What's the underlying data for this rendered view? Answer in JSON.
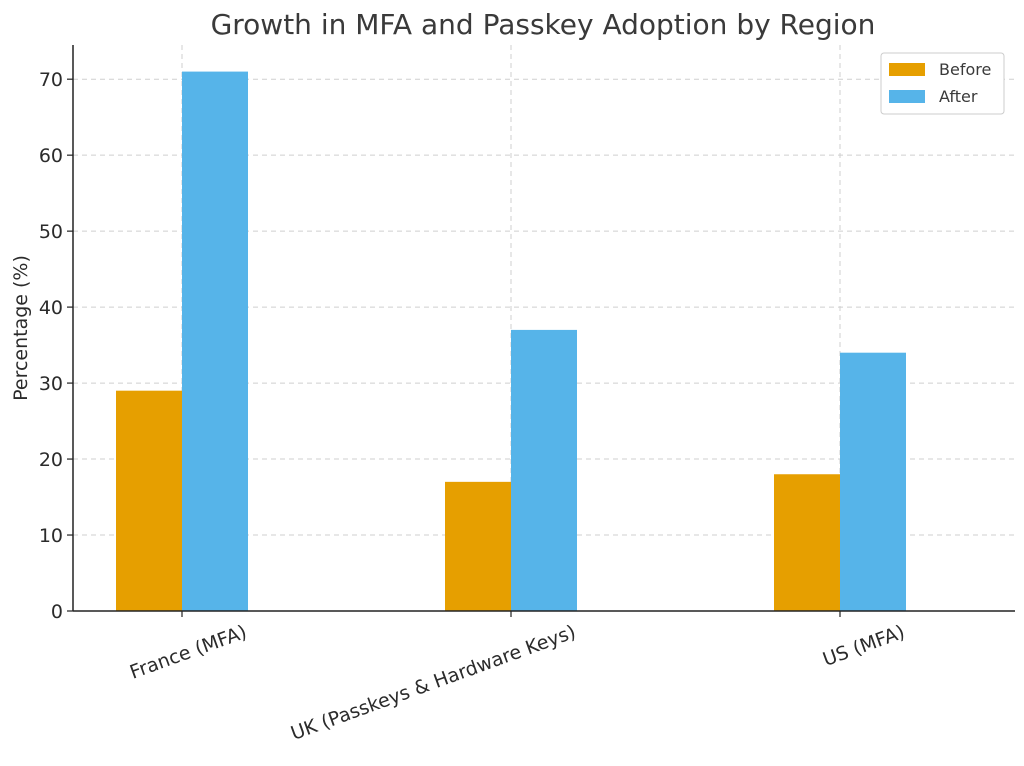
{
  "chart_data": {
    "type": "bar",
    "title": "Growth in MFA and Passkey Adoption by Region",
    "xlabel": "",
    "ylabel": "Percentage (%)",
    "categories": [
      "France (MFA)",
      "UK (Passkeys & Hardware Keys)",
      "US (MFA)"
    ],
    "series": [
      {
        "name": "Before",
        "color": "#E69F00",
        "values": [
          29,
          17,
          18
        ]
      },
      {
        "name": "After",
        "color": "#56B4E9",
        "values": [
          71,
          37,
          34
        ]
      }
    ],
    "ylim": [
      0,
      74.5
    ],
    "yticks": [
      0,
      10,
      20,
      30,
      40,
      50,
      60,
      70
    ],
    "grid": true,
    "legend_position": "top-right"
  }
}
